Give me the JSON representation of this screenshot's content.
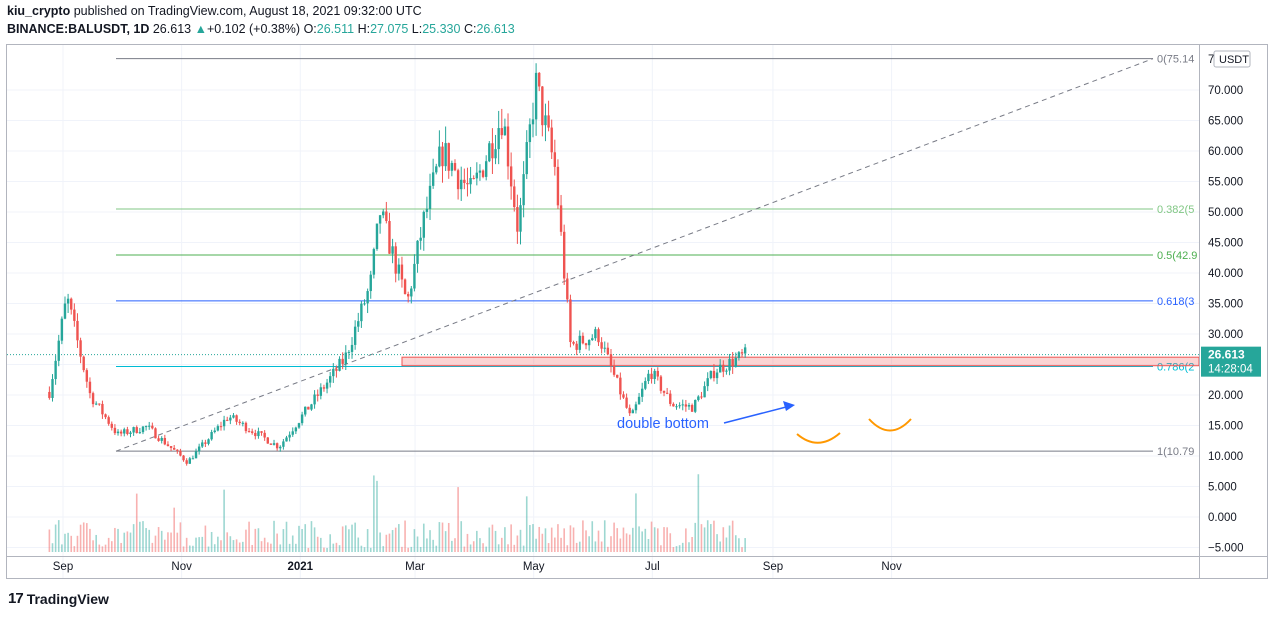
{
  "header": {
    "publisher": "kiu_crypto",
    "published_text": "published on TradingView.com, August 18, 2021 09:32:00 UTC",
    "symbol": "BINANCE:BALUSDT, 1D",
    "last": "26.613",
    "change": "+0.102 (+0.38%)",
    "open_label": "O:",
    "open": "26.511",
    "high_label": "H:",
    "high": "27.075",
    "low_label": "L:",
    "low": "25.330",
    "close_label": "C:",
    "close": "26.613"
  },
  "currency_label": "USDT",
  "price_badge": {
    "value": "26.613",
    "countdown": "14:28:04"
  },
  "annotation": "double bottom",
  "footer": {
    "logo_text": "TradingView",
    "logo_mark": "17"
  },
  "colors": {
    "up": "#26a69a",
    "down": "#ef5350",
    "fib_0": "#787b86",
    "fib_382": "#81c784",
    "fib_5": "#4caf50",
    "fib_618": "#2962ff",
    "fib_786": "#00bcd4",
    "fib_1": "#787b86",
    "zone": "#ef5350",
    "arrow": "#2962ff",
    "curve": "#ff9800"
  },
  "chart_data": {
    "type": "candlestick",
    "x_ticks": [
      "Sep",
      "Nov",
      "2021",
      "Mar",
      "May",
      "Jul",
      "Sep",
      "Nov"
    ],
    "y_ticks": [
      "70.000",
      "65.000",
      "60.000",
      "55.000",
      "50.000",
      "45.000",
      "40.000",
      "35.000",
      "30.000",
      "25.000",
      "20.000",
      "15.000",
      "10.000",
      "5.000",
      "0.000",
      "−5.000"
    ],
    "y_top_label": "7",
    "ylim": [
      -6,
      76
    ],
    "fib_levels": [
      {
        "label": "0(75.14",
        "value": 75.14
      },
      {
        "label": "0.382(5",
        "value": 50.5
      },
      {
        "label": "0.5(42.9",
        "value": 42.96
      },
      {
        "label": "0.618(3",
        "value": 35.43
      },
      {
        "label": "0.786(2",
        "value": 24.67
      },
      {
        "label": "1(10.79",
        "value": 10.79
      }
    ],
    "resistance_zone": [
      24.8,
      26.2
    ],
    "last_price": 26.613,
    "price_path": [
      {
        "date": "2020-08-25",
        "price": 20.5
      },
      {
        "date": "2020-09-03",
        "price": 36.0
      },
      {
        "date": "2020-09-15",
        "price": 20.0
      },
      {
        "date": "2020-09-29",
        "price": 13.5
      },
      {
        "date": "2020-10-14",
        "price": 14.8
      },
      {
        "date": "2020-11-04",
        "price": 9.0
      },
      {
        "date": "2020-11-25",
        "price": 16.5
      },
      {
        "date": "2020-12-21",
        "price": 11.5
      },
      {
        "date": "2021-01-10",
        "price": 20.0
      },
      {
        "date": "2021-01-24",
        "price": 26.0
      },
      {
        "date": "2021-02-06",
        "price": 38.0
      },
      {
        "date": "2021-02-11",
        "price": 50.0
      },
      {
        "date": "2021-02-25",
        "price": 35.0
      },
      {
        "date": "2021-03-05",
        "price": 48.0
      },
      {
        "date": "2021-03-15",
        "price": 60.0
      },
      {
        "date": "2021-03-30",
        "price": 53.0
      },
      {
        "date": "2021-04-15",
        "price": 66.0
      },
      {
        "date": "2021-04-23",
        "price": 47.0
      },
      {
        "date": "2021-05-02",
        "price": 71.0
      },
      {
        "date": "2021-05-12",
        "price": 57.0
      },
      {
        "date": "2021-05-20",
        "price": 28.0
      },
      {
        "date": "2021-06-03",
        "price": 30.0
      },
      {
        "date": "2021-06-20",
        "price": 16.0
      },
      {
        "date": "2021-06-30",
        "price": 24.0
      },
      {
        "date": "2021-07-11",
        "price": 18.5
      },
      {
        "date": "2021-07-22",
        "price": 18.0
      },
      {
        "date": "2021-08-02",
        "price": 24.0
      },
      {
        "date": "2021-08-18",
        "price": 26.613
      }
    ],
    "grid": true
  }
}
